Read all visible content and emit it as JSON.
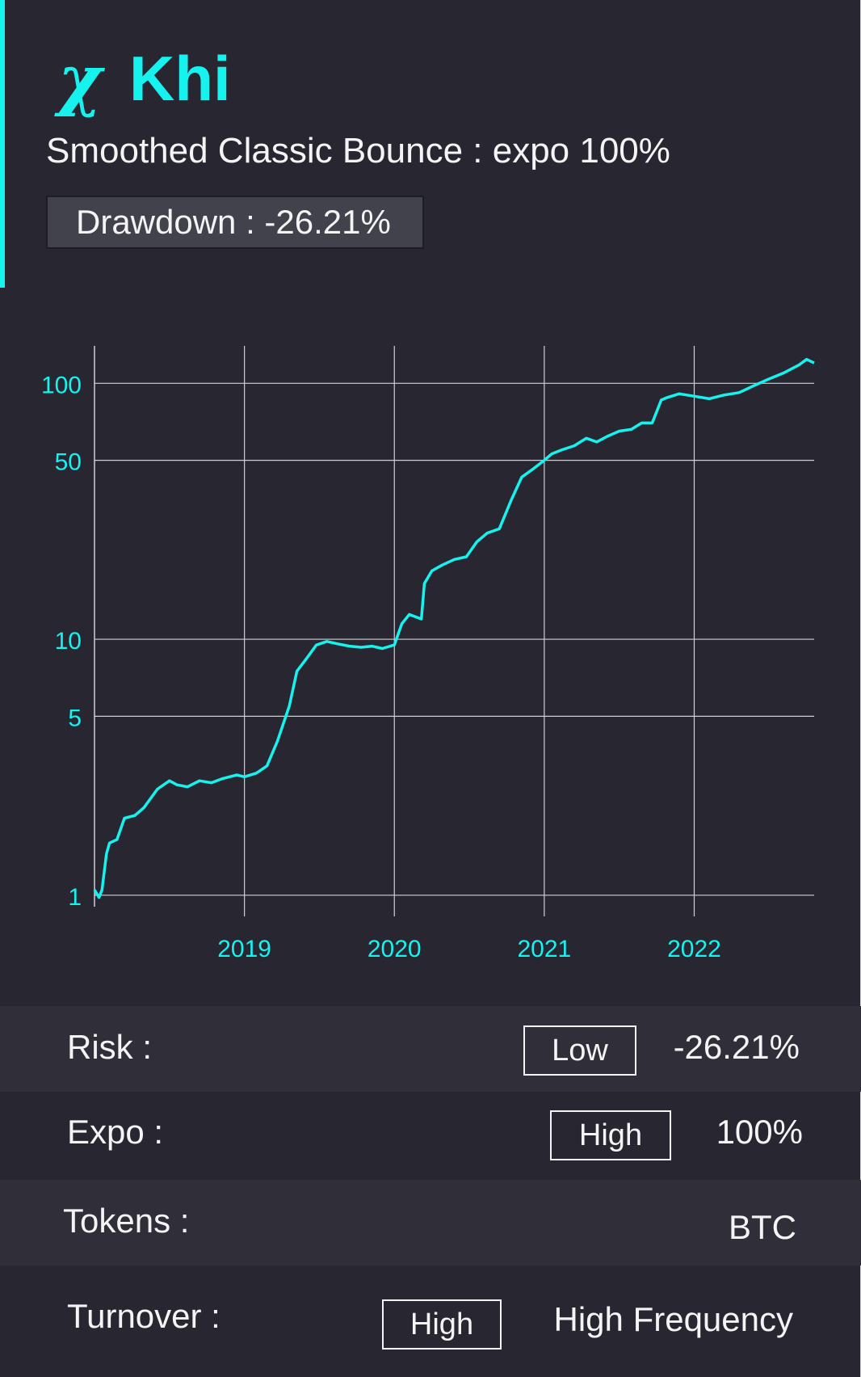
{
  "brand": {
    "glyph": "χ",
    "name": "Khi"
  },
  "strategy": {
    "title": "Smoothed Classic Bounce : expo 100%",
    "drawdown_label": "Drawdown : -26.21%"
  },
  "colors": {
    "accent": "#16f2ee",
    "background": "#282731",
    "text": "#f4f4f4"
  },
  "chart_data": {
    "type": "line",
    "yscale": "log",
    "title": "",
    "xlabel": "",
    "ylabel": "",
    "grid": true,
    "ylim": [
      0.97,
      140
    ],
    "xlim": [
      2018.0,
      2022.8
    ],
    "yticks": [
      1,
      5,
      10,
      50,
      100
    ],
    "ytick_labels": [
      "1",
      "5",
      "10",
      "50",
      "100"
    ],
    "xticks": [
      2019,
      2020,
      2021,
      2022
    ],
    "xtick_labels": [
      "2019",
      "2020",
      "2021",
      "2022"
    ],
    "series": [
      {
        "color": "#16f2ee",
        "x": [
          2018.0,
          2018.03,
          2018.05,
          2018.08,
          2018.1,
          2018.15,
          2018.2,
          2018.27,
          2018.33,
          2018.42,
          2018.5,
          2018.55,
          2018.62,
          2018.7,
          2018.78,
          2018.85,
          2018.9,
          2018.95,
          2019.0,
          2019.08,
          2019.15,
          2019.22,
          2019.3,
          2019.35,
          2019.42,
          2019.48,
          2019.55,
          2019.62,
          2019.7,
          2019.78,
          2019.85,
          2019.92,
          2020.0,
          2020.05,
          2020.1,
          2020.18,
          2020.2,
          2020.25,
          2020.32,
          2020.4,
          2020.48,
          2020.55,
          2020.62,
          2020.7,
          2020.78,
          2020.85,
          2020.92,
          2021.0,
          2021.05,
          2021.12,
          2021.2,
          2021.28,
          2021.35,
          2021.42,
          2021.5,
          2021.58,
          2021.65,
          2021.72,
          2021.78,
          2021.82,
          2021.9,
          2022.0,
          2022.1,
          2022.2,
          2022.3,
          2022.4,
          2022.5,
          2022.6,
          2022.7,
          2022.75,
          2022.8
        ],
        "y": [
          1.05,
          0.98,
          1.05,
          1.45,
          1.6,
          1.65,
          2.0,
          2.05,
          2.2,
          2.6,
          2.8,
          2.7,
          2.65,
          2.8,
          2.75,
          2.85,
          2.9,
          2.95,
          2.9,
          3.0,
          3.2,
          4.0,
          5.5,
          7.5,
          8.5,
          9.5,
          9.8,
          9.6,
          9.4,
          9.3,
          9.4,
          9.2,
          9.5,
          11.5,
          12.5,
          12.0,
          16.5,
          18.5,
          19.5,
          20.5,
          21.0,
          24.0,
          26.0,
          27.0,
          35.0,
          43.0,
          46.0,
          50.0,
          53.0,
          55.0,
          57.0,
          61.0,
          59.0,
          62.0,
          65.0,
          66.0,
          70.0,
          70.0,
          86.0,
          88.0,
          91.0,
          89.0,
          87.0,
          90.0,
          92.0,
          98.0,
          104.0,
          110.0,
          118.0,
          124.0,
          120.0
        ]
      }
    ]
  },
  "stats": [
    {
      "label": "Risk :",
      "badge": "Low",
      "value": "-26.21%"
    },
    {
      "label": "Expo :",
      "badge": "High",
      "value": "100%"
    },
    {
      "label": "Tokens :",
      "badge": "",
      "value": "BTC"
    },
    {
      "label": "Turnover :",
      "badge": "High",
      "value": "High Frequency"
    }
  ]
}
